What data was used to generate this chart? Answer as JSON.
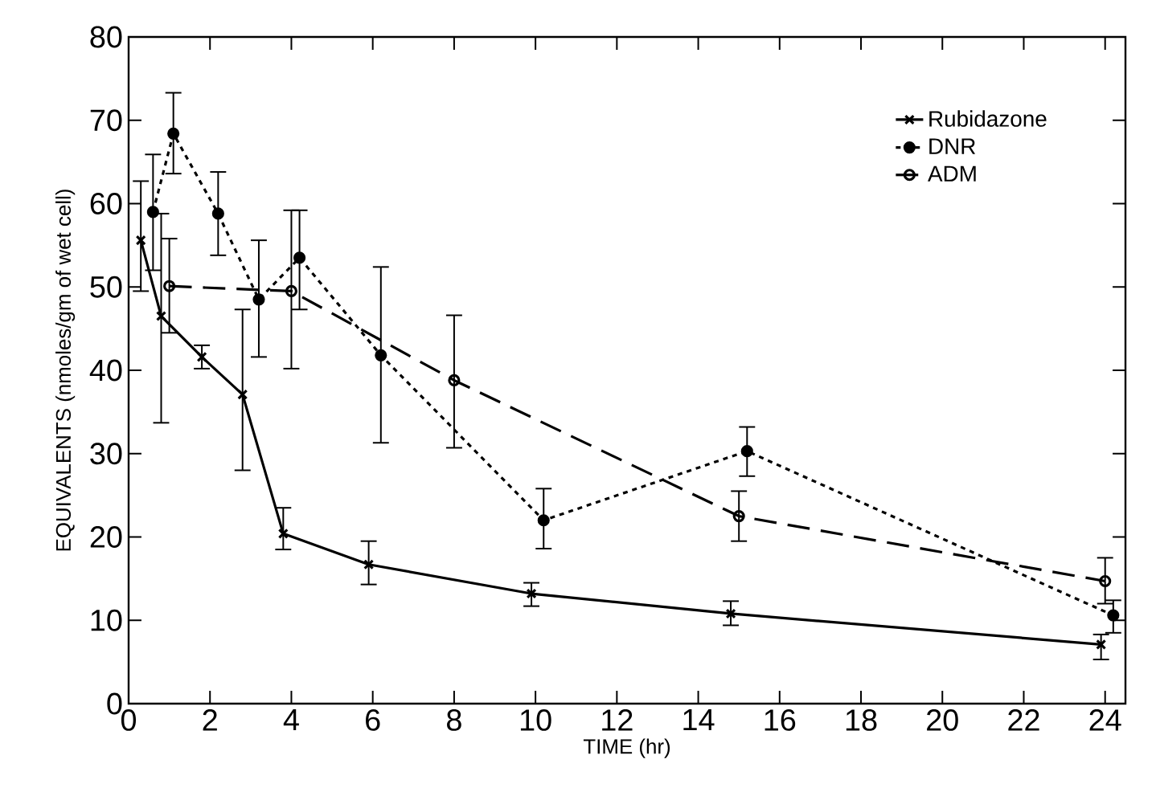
{
  "chart_data": {
    "type": "line",
    "xlabel": "TIME (hr)",
    "ylabel": "EQUIVALENTS (nmoles/gm of wet cell)",
    "xlim": [
      0,
      24.5
    ],
    "ylim": [
      0,
      80
    ],
    "xticks": [
      0,
      2,
      4,
      6,
      8,
      10,
      12,
      14,
      16,
      18,
      20,
      22,
      24
    ],
    "yticks": [
      0,
      10,
      20,
      30,
      40,
      50,
      60,
      70,
      80
    ],
    "grid": false,
    "legend": "top right",
    "series": [
      {
        "name": "Rubidazone",
        "color": "#000000",
        "marker": "cross",
        "line_style": "solid",
        "x": [
          0.3,
          0.8,
          1.8,
          2.8,
          3.8,
          5.9,
          9.9,
          14.8,
          23.9
        ],
        "values": [
          55.6,
          46.5,
          41.6,
          37.1,
          20.4,
          16.7,
          13.2,
          10.8,
          7.1
        ],
        "errors": [
          [
            49.5,
            62.7
          ],
          [
            33.7,
            58.8
          ],
          [
            40.2,
            43
          ],
          [
            28,
            47.3
          ],
          [
            18.5,
            23.5
          ],
          [
            14.3,
            19.5
          ],
          [
            11.7,
            14.5
          ],
          [
            9.4,
            12.3
          ],
          [
            5.3,
            8.3
          ]
        ]
      },
      {
        "name": "DNR",
        "color": "#000000",
        "marker": "dot",
        "line_style": "dotted",
        "x": [
          0.6,
          1.1,
          2.2,
          3.2,
          4.2,
          6.2,
          10.2,
          15.2,
          24.2
        ],
        "values": [
          59,
          68.4,
          58.8,
          48.5,
          53.5,
          41.8,
          22,
          30.3,
          10.6
        ],
        "errors": [
          [
            52,
            65.9
          ],
          [
            63.6,
            73.3
          ],
          [
            53.8,
            63.8
          ],
          [
            41.6,
            55.6
          ],
          [
            47.3,
            59.2
          ],
          [
            31.3,
            52.4
          ],
          [
            18.6,
            25.8
          ],
          [
            27.3,
            33.2
          ],
          [
            8.5,
            12.4
          ]
        ]
      },
      {
        "name": "ADM",
        "color": "#000000",
        "marker": "circle",
        "line_style": "dashed",
        "x": [
          1.0,
          4.0,
          8.0,
          15.0,
          24.0
        ],
        "values": [
          50.1,
          49.5,
          38.8,
          22.5,
          14.7
        ],
        "errors": [
          [
            44.5,
            55.8
          ],
          [
            40.2,
            59.2
          ],
          [
            30.7,
            46.6
          ],
          [
            19.5,
            25.5
          ],
          [
            12,
            17.5
          ]
        ]
      }
    ]
  }
}
